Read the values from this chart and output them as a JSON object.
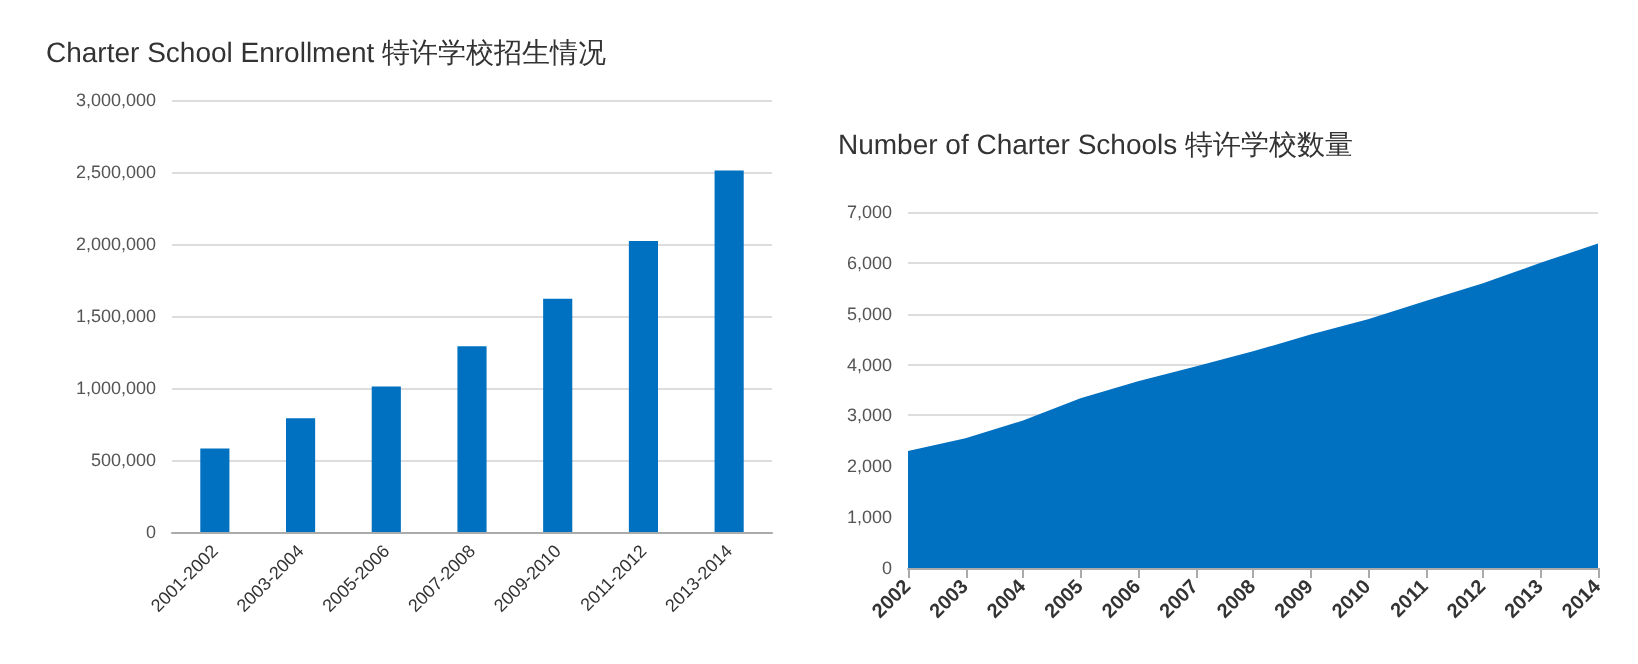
{
  "chart_data": [
    {
      "type": "bar",
      "title": "Charter School Enrollment 特许学校招生情况",
      "categories": [
        "2001-2002",
        "2003-2004",
        "2005-2006",
        "2007-2008",
        "2009-2010",
        "2011-2012",
        "2013-2014"
      ],
      "values": [
        580000,
        790000,
        1010000,
        1290000,
        1620000,
        2020000,
        2510000
      ],
      "color": "#0070c0",
      "ylim": [
        0,
        3000000
      ],
      "yticks": [
        0,
        {
          "value": 500000,
          "label": "500,000"
        },
        {
          "value": 1000000,
          "label": "1,000,000"
        },
        {
          "value": 1500000,
          "label": "1,500,000"
        },
        {
          "value": 2000000,
          "label": "2,000,000"
        },
        {
          "value": 2500000,
          "label": "2,500,000"
        },
        {
          "value": 3000000,
          "label": "3,000,000"
        }
      ],
      "grid": "y"
    },
    {
      "type": "area",
      "title": "Number of Charter Schools 特许学校数量",
      "categories": [
        "2002",
        "2003",
        "2004",
        "2005",
        "2006",
        "2007",
        "2008",
        "2009",
        "2010",
        "2011",
        "2012",
        "2013",
        "2014"
      ],
      "values": [
        2300,
        2550,
        2900,
        3340,
        3670,
        3960,
        4260,
        4590,
        4890,
        5250,
        5600,
        6000,
        6380
      ],
      "color": "#0070c0",
      "ylim": [
        0,
        7000
      ],
      "yticks": [
        0,
        {
          "value": 1000,
          "label": "1,000"
        },
        {
          "value": 2000,
          "label": "2,000"
        },
        {
          "value": 3000,
          "label": "3,000"
        },
        {
          "value": 4000,
          "label": "4,000"
        },
        {
          "value": 5000,
          "label": "5,000"
        },
        {
          "value": 6000,
          "label": "6,000"
        },
        {
          "value": 7000,
          "label": "7,000"
        }
      ],
      "grid": "y"
    }
  ]
}
